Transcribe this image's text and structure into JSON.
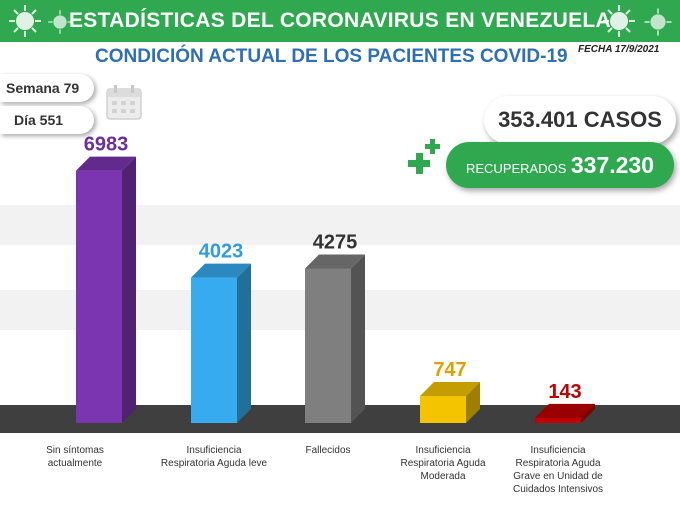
{
  "header": {
    "title": "ESTADÍSTICAS DEL CORONAVIRUS EN VENEZUELA"
  },
  "subtitle": "CONDICIÓN ACTUAL DE LOS PACIENTES COVID-19",
  "fecha": "FECHA 17/9/2021",
  "semana": "Semana 79",
  "dia": "Día 551",
  "casos": "353.401 CASOS",
  "recuperados": {
    "label": "RECUPERADOS",
    "value": "337.230"
  },
  "colors": {
    "header": "#2fa84f",
    "subtitle": "#2e6fb6"
  },
  "chart_data": {
    "type": "bar",
    "categories": [
      "Sin síntomas actualmente",
      "Insuficiencia Respiratoria Aguda leve",
      "Fallecidos",
      "Insuficiencia Respiratoria Aguda Moderada",
      "Insuficiencia Respiratoria Aguda Grave en Unidad de Cuidados Intensivos"
    ],
    "values": [
      6983,
      4023,
      4275,
      747,
      143
    ],
    "value_labels": [
      "6983",
      "4023",
      "4275",
      "747",
      "143"
    ],
    "colors": [
      "#7b35b0",
      "#36abf0",
      "#7f7f7f",
      "#f5c400",
      "#c00000"
    ],
    "title": "",
    "xlabel": "",
    "ylabel": "",
    "ylim": [
      0,
      7000
    ],
    "grid": true
  }
}
